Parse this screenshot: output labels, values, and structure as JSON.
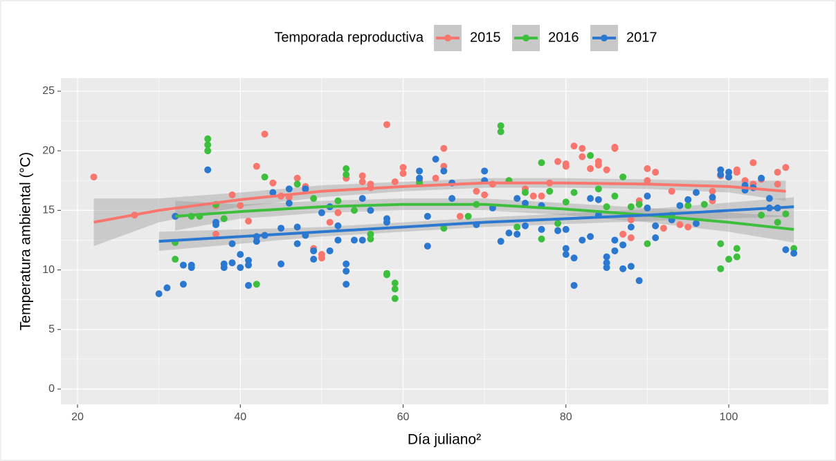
{
  "chart_data": {
    "type": "scatter",
    "x_label": "Día juliano²",
    "y_label": "Temperatura ambiental (°C)",
    "legend_title": "Temporada reproductiva",
    "legend_position": "top",
    "grid": true,
    "xlim": [
      17.96,
      112.24
    ],
    "xticks": [
      20,
      40,
      60,
      80,
      100
    ],
    "ylim": [
      -1.28,
      26.1
    ],
    "yticks": [
      0,
      5,
      10,
      15,
      20,
      25
    ],
    "series": [
      {
        "name": "2015",
        "color": "#F8766D",
        "x": [
          22,
          27,
          37,
          37,
          39,
          40,
          41,
          42,
          43,
          44,
          45,
          46,
          47,
          48,
          49,
          50,
          50,
          51,
          52,
          53,
          55,
          55,
          56,
          56,
          58,
          59,
          60,
          60,
          62,
          64,
          65,
          65,
          67,
          69,
          70,
          71,
          73,
          75,
          76,
          77,
          78,
          79,
          80,
          80,
          81,
          82,
          82,
          83,
          84,
          84,
          85,
          86,
          86,
          87,
          88,
          88,
          89,
          90,
          90,
          91,
          92,
          93,
          94,
          95,
          98,
          98,
          99,
          100,
          101,
          101,
          102,
          103,
          103,
          104,
          106,
          106,
          107,
          107
        ],
        "values": [
          17.8,
          14.6,
          15.4,
          13,
          16.3,
          15.4,
          14.1,
          18.7,
          21.4,
          17.3,
          16.2,
          16.1,
          17.7,
          17,
          11.8,
          11,
          11.3,
          14,
          14.8,
          17.7,
          17.9,
          17.4,
          17.2,
          16.9,
          22.2,
          17.4,
          18.6,
          18.1,
          17.5,
          17.7,
          20.2,
          18.7,
          14.5,
          16.6,
          16.3,
          17.2,
          17.5,
          16.8,
          16.2,
          16.2,
          17.3,
          19.1,
          18.9,
          18.7,
          20.4,
          20.2,
          19.5,
          18.5,
          19.1,
          18.8,
          18.4,
          20.3,
          20.2,
          13,
          12.7,
          14.2,
          15.8,
          18.5,
          17.5,
          18.2,
          13.5,
          16.6,
          13.8,
          13.6,
          16.6,
          15.8,
          17.9,
          17.8,
          18.4,
          18.2,
          17.5,
          17.2,
          19,
          17.6,
          18.2,
          17.2,
          18.6,
          14.7
        ],
        "fit": {
          "x": [
            22,
            30,
            40,
            50,
            60,
            70,
            80,
            90,
            100,
            107
          ],
          "values": [
            14.0,
            15.0,
            15.9,
            16.6,
            17.0,
            17.3,
            17.3,
            17.2,
            17.0,
            16.6
          ],
          "lower": [
            12.0,
            14.0,
            15.3,
            16.1,
            16.6,
            16.9,
            16.9,
            16.8,
            16.5,
            15.8
          ],
          "upper": [
            16.0,
            16.0,
            16.5,
            17.1,
            17.4,
            17.7,
            17.7,
            17.6,
            17.5,
            17.5
          ]
        }
      },
      {
        "name": "2016",
        "color": "#3DBF3D",
        "x": [
          32,
          32,
          34,
          35,
          36,
          36,
          36,
          37,
          38,
          42,
          43,
          47,
          49,
          52,
          53,
          53,
          54,
          56,
          56,
          58,
          58,
          59,
          59,
          59,
          62,
          65,
          68,
          69,
          72,
          72,
          73,
          74,
          75,
          77,
          77,
          78,
          79,
          80,
          81,
          83,
          84,
          85,
          86,
          87,
          88,
          89,
          90,
          93,
          95,
          97,
          99,
          99,
          100,
          101,
          101,
          104,
          106,
          107,
          108
        ],
        "values": [
          12.3,
          10.9,
          14.5,
          14.5,
          21,
          20.5,
          20,
          15.5,
          14.3,
          8.8,
          17.8,
          17.2,
          16,
          15.8,
          18.5,
          18,
          15,
          12.6,
          13,
          9.7,
          9.6,
          8.9,
          8.4,
          7.6,
          17.3,
          13.5,
          14.5,
          15.5,
          22.1,
          21.6,
          17.5,
          13.6,
          16.5,
          19,
          12.6,
          16.6,
          13.9,
          15.7,
          16.5,
          19.6,
          16.8,
          15.3,
          16.2,
          17.8,
          15.3,
          15.5,
          12.2,
          14.6,
          15.4,
          15.5,
          12.2,
          10.1,
          10.9,
          11.8,
          11.1,
          14.6,
          14,
          14.7,
          11.8
        ],
        "fit": {
          "x": [
            32,
            40,
            50,
            60,
            70,
            80,
            90,
            100,
            108
          ],
          "values": [
            14.5,
            14.9,
            15.3,
            15.5,
            15.5,
            15.1,
            14.6,
            14.0,
            13.4
          ],
          "lower": [
            13.3,
            14.3,
            14.8,
            15.0,
            15.0,
            14.6,
            14.0,
            13.2,
            12.3
          ],
          "upper": [
            15.8,
            15.5,
            15.8,
            16.0,
            16.0,
            15.6,
            15.2,
            14.8,
            14.5
          ]
        }
      },
      {
        "name": "2017",
        "color": "#2A78D0",
        "x": [
          30,
          31,
          32,
          33,
          33,
          34,
          34,
          36,
          37,
          37,
          38,
          38,
          39,
          39,
          40,
          40,
          41,
          41,
          41,
          42,
          42,
          43,
          44,
          45,
          45,
          46,
          46,
          47,
          47,
          48,
          48,
          49,
          49,
          50,
          51,
          51,
          52,
          52,
          53,
          53,
          53,
          54,
          55,
          55,
          56,
          58,
          58,
          62,
          62,
          63,
          63,
          64,
          65,
          66,
          66,
          69,
          70,
          70,
          71,
          72,
          73,
          74,
          74,
          75,
          75,
          77,
          77,
          79,
          80,
          80,
          80,
          81,
          81,
          82,
          83,
          83,
          84,
          84,
          85,
          85,
          85,
          86,
          86,
          87,
          87,
          88,
          88,
          89,
          90,
          90,
          91,
          91,
          93,
          94,
          95,
          96,
          96,
          98,
          99,
          99,
          100,
          100,
          102,
          102,
          103,
          104,
          105,
          105,
          106,
          107,
          108
        ],
        "values": [
          8,
          8.5,
          14.5,
          10.4,
          8.8,
          10.4,
          10.2,
          18.4,
          14,
          13.8,
          10.5,
          10.2,
          12.2,
          10.6,
          11.3,
          10.2,
          10.4,
          10.8,
          8.7,
          12.4,
          12.8,
          12.9,
          16.5,
          13.5,
          10.5,
          16.8,
          15.6,
          12.2,
          13.6,
          16.8,
          12.9,
          11.6,
          10.9,
          14.8,
          11.6,
          15.3,
          13.7,
          12.5,
          10.5,
          9.9,
          8.8,
          12.5,
          12.5,
          16,
          15,
          14.3,
          14,
          18.3,
          17.7,
          12,
          14.5,
          19.3,
          18.3,
          17.3,
          16,
          13.8,
          18.3,
          17.5,
          15.2,
          12.4,
          13.1,
          16,
          13,
          15.6,
          13.7,
          13.4,
          15.4,
          13.3,
          13.4,
          11.8,
          11.3,
          11,
          8.7,
          12.5,
          12.8,
          16,
          15.9,
          14.6,
          11.1,
          10.6,
          10.2,
          11.6,
          12.5,
          10.1,
          12.1,
          13.6,
          10.3,
          9.1,
          15.2,
          16.2,
          13.7,
          12.7,
          14.2,
          15.4,
          15.9,
          13.9,
          16.5,
          16.1,
          18.4,
          18,
          18.2,
          17.8,
          17.1,
          16.7,
          16.9,
          17.7,
          16,
          15.2,
          15.2,
          11.7,
          11.4
        ],
        "fit": {
          "x": [
            30,
            50,
            70,
            90,
            108
          ],
          "values": [
            12.4,
            13.2,
            14.0,
            14.6,
            15.3
          ],
          "lower": [
            11.6,
            12.8,
            13.6,
            14.1,
            14.5
          ],
          "upper": [
            13.2,
            13.6,
            14.4,
            15.1,
            16.1
          ]
        }
      }
    ]
  }
}
